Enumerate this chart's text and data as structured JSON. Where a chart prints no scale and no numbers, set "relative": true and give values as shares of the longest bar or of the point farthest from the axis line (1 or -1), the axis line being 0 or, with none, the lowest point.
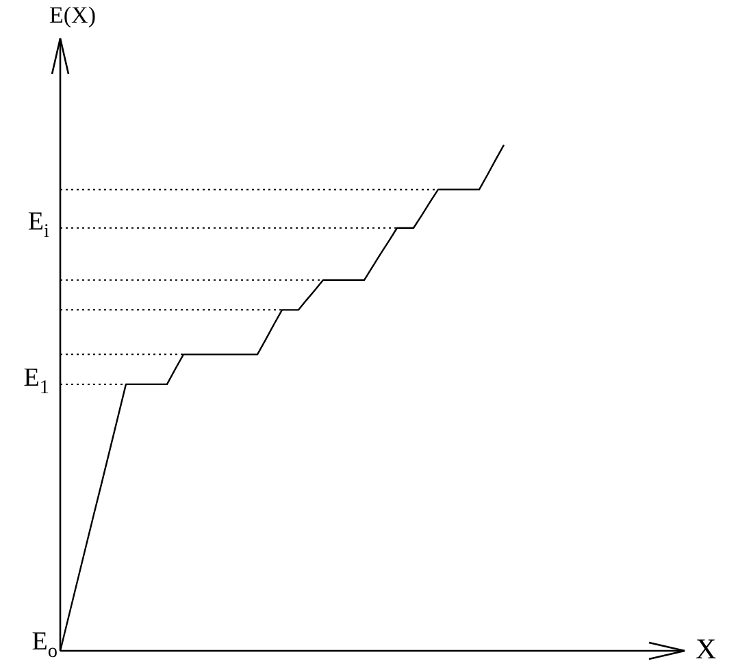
{
  "chart_data": {
    "type": "line",
    "relative": true,
    "xlabel": "X",
    "categories": [
      null,
      null,
      null,
      null,
      null,
      null,
      null,
      null,
      null,
      null,
      null,
      null,
      null,
      null,
      null,
      null,
      null,
      null,
      null,
      null,
      null,
      null,
      null,
      null,
      null,
      null,
      null,
      null,
      null,
      null,
      null,
      null,
      null,
      null,
      null,
      null,
      null,
      null,
      null,
      null,
      null,
      null,
      null,
      null,
      null,
      null,
      null,
      null,
      null,
      null,
      null,
      null,
      null,
      null,
      null,
      null,
      null,
      null,
      null,
      null,
      null,
      null,
      null,
      null,
      null,
      null,
      null,
      null,
      null,
      null,
      null,
      null,
      null,
      null,
      null,
      null,
      null
    ],
    "series": [
      {
        "color": "#000000",
        "values": [
          0,
          0.066,
          0.132,
          0.198,
          0.264,
          0.329,
          0.395,
          0.461,
          0.527,
          0.527,
          0.527,
          0.527,
          0.527,
          0.527,
          0.557,
          0.586,
          0.586,
          0.586,
          0.586,
          0.586,
          0.586,
          0.586,
          0.586,
          0.586,
          0.586,
          0.615,
          0.645,
          0.674,
          0.674,
          0.674,
          0.694,
          0.713,
          0.733,
          0.733,
          0.733,
          0.733,
          0.733,
          0.733,
          0.759,
          0.785,
          0.81,
          0.836,
          0.836,
          0.836,
          0.861,
          0.887,
          0.912,
          0.912,
          0.912,
          0.912,
          0.912,
          0.912,
          0.941,
          0.971,
          1,
          null,
          null,
          null,
          null,
          null,
          null,
          null,
          null,
          null,
          null,
          null,
          null,
          null,
          null,
          null,
          null,
          null,
          null,
          null,
          null,
          null,
          null
        ]
      }
    ],
    "ref_lines": [
      {
        "axis": "y",
        "value": 0.527,
        "label": "E$_{1}$",
        "line_style": "dotted"
      },
      {
        "axis": "y",
        "value": 0.586,
        "label": null,
        "line_style": "dotted"
      },
      {
        "axis": "y",
        "value": 0.674,
        "label": null,
        "line_style": "dotted"
      },
      {
        "axis": "y",
        "value": 0.733,
        "label": null,
        "line_style": "dotted"
      },
      {
        "axis": "y",
        "value": 0.836,
        "label": "E$_{i}$",
        "line_style": "dotted"
      },
      {
        "axis": "y",
        "value": 0.912,
        "label": null,
        "line_style": "dotted"
      }
    ],
    "annotations": [
      "E(X)",
      "E$_{o}$"
    ],
    "legend": false,
    "marker": "none",
    "line_style": "solid"
  }
}
